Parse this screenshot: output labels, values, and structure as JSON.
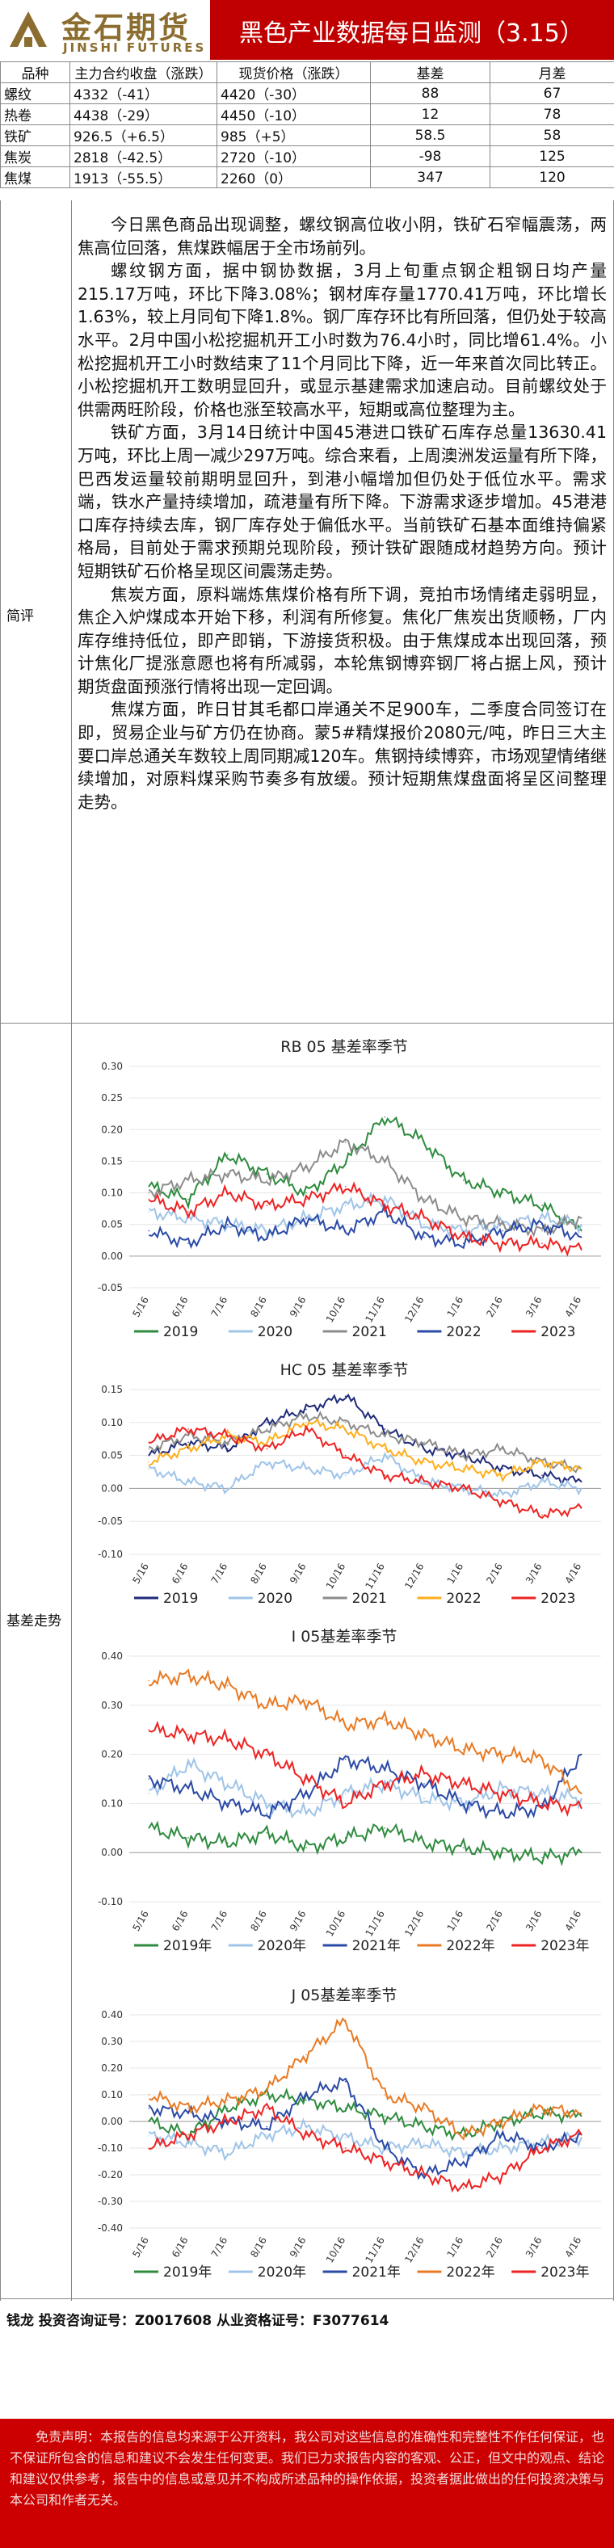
{
  "header": {
    "logo_cn": "金石期货",
    "logo_en": "JINSHI FUTURES",
    "title": "黑色产业数据每日监测（3.15）"
  },
  "price_table": {
    "headers": [
      "品种",
      "主力合约收盘（涨跌）",
      "现货价格（涨跌）",
      "基差",
      "月差"
    ],
    "rows": [
      [
        "螺纹",
        "4332（-41）",
        "4420（-30）",
        "88",
        "67"
      ],
      [
        "热卷",
        "4438（-29）",
        "4450（-10）",
        "12",
        "78"
      ],
      [
        "铁矿",
        "926.5（+6.5）",
        "985（+5）",
        "58.5",
        "58"
      ],
      [
        "焦炭",
        "2818（-42.5）",
        "2720（-10）",
        "-98",
        "125"
      ],
      [
        "焦煤",
        "1913（-55.5）",
        "2260（0）",
        "347",
        "120"
      ]
    ]
  },
  "summary": {
    "label": "简评",
    "paragraphs": [
      "今日黑色商品出现调整，螺纹钢高位收小阴，铁矿石窄幅震荡，两焦高位回落，焦煤跌幅居于全市场前列。",
      "螺纹钢方面，据中钢协数据，3月上旬重点钢企粗钢日均产量215.17万吨，环比下降3.08%；钢材库存量1770.41万吨，环比增长1.63%，较上月同旬下降1.8%。钢厂库存环比有所回落，但仍处于较高水平。2月中国小松挖掘机开工小时数为76.4小时，同比增61.4%。小松挖掘机开工小时数结束了11个月同比下降，近一年来首次同比转正。小松挖掘机开工数明显回升，或显示基建需求加速启动。目前螺纹处于供需两旺阶段，价格也涨至较高水平，短期或高位整理为主。",
      "铁矿方面，3月14日统计中国45港进口铁矿石库存总量13630.41万吨，环比上周一减少297万吨。综合来看，上周澳洲发运量有所下降，巴西发运量较前期明显回升，到港小幅增加但仍处于低位水平。需求端，铁水产量持续增加，疏港量有所下降。下游需求逐步增加。45港港口库存持续去库，钢厂库存处于偏低水平。当前铁矿石基本面维持偏紧格局，目前处于需求预期兑现阶段，预计铁矿跟随成材趋势方向。预计短期铁矿石价格呈现区间震荡走势。",
      "焦炭方面，原料端炼焦煤价格有所下调，竞拍市场情绪走弱明显，焦企入炉煤成本开始下移，利润有所修复。焦化厂焦炭出货顺畅，厂内库存维持低位，即产即销，下游接货积极。由于焦煤成本出现回落，预计焦化厂提涨意愿也将有所减弱，本轮焦钢博弈钢厂将占据上风，预计期货盘面预涨行情将出现一定回调。",
      "焦煤方面，昨日甘其毛都口岸通关不足900车，二季度合同签订在即，贸易企业与矿方仍在协商。蒙5#精煤报价2080元/吨，昨日三大主要口岸总通关车数较上周同期减120车。焦钢持续博弈，市场观望情绪继续增加，对原料煤采购节奏多有放缓。预计短期焦煤盘面将呈区间整理走势。"
    ]
  },
  "basis": {
    "label": "基差走势",
    "colors": {
      "2019": "#2e8b3e",
      "2020": "#9fc4e8",
      "2021": "#8c8c8c",
      "2022": "#ffae1a",
      "2023": "#ee2222",
      "2021b": "#2a4aa6",
      "2022o": "#e87a23"
    }
  },
  "chart_data": [
    {
      "type": "line",
      "title": "RB 05 基差率季节",
      "x": [
        "5/16",
        "6/16",
        "7/16",
        "8/16",
        "9/16",
        "10/16",
        "11/16",
        "12/16",
        "1/16",
        "2/16",
        "3/16",
        "4/16"
      ],
      "ylim": [
        -0.05,
        0.3
      ],
      "yticks": [
        "-0.05",
        "0.00",
        "0.05",
        "0.10",
        "0.15",
        "0.20",
        "0.25",
        "0.30"
      ],
      "legend": [
        "2019",
        "2020",
        "2021",
        "2022",
        "2023"
      ],
      "legend_position": "bottom",
      "series": [
        {
          "name": "2019",
          "values": [
            0.11,
            0.09,
            0.16,
            0.13,
            0.1,
            0.15,
            0.22,
            0.18,
            0.12,
            0.1,
            0.08,
            0.04
          ]
        },
        {
          "name": "2020",
          "values": [
            0.07,
            0.06,
            0.05,
            0.04,
            0.06,
            0.08,
            0.09,
            0.05,
            0.04,
            0.05,
            0.06,
            0.05
          ]
        },
        {
          "name": "2021",
          "values": [
            0.1,
            0.12,
            0.13,
            0.12,
            0.14,
            0.18,
            0.15,
            0.09,
            0.06,
            0.05,
            0.04,
            0.06
          ]
        },
        {
          "name": "2022",
          "values": [
            0.04,
            0.02,
            0.05,
            0.03,
            0.06,
            0.04,
            0.07,
            0.03,
            0.02,
            0.04,
            0.05,
            0.03
          ]
        },
        {
          "name": "2023",
          "values": [
            0.09,
            0.07,
            0.1,
            0.08,
            0.09,
            0.11,
            0.08,
            0.06,
            0.03,
            0.02,
            0.02,
            0.01
          ]
        }
      ]
    },
    {
      "type": "line",
      "title": "HC 05 基差率季节",
      "x": [
        "5/16",
        "6/16",
        "7/16",
        "8/16",
        "9/16",
        "10/16",
        "11/16",
        "12/16",
        "1/16",
        "2/16",
        "3/16",
        "4/16"
      ],
      "ylim": [
        -0.1,
        0.15
      ],
      "yticks": [
        "-0.10",
        "-0.05",
        "0.00",
        "0.05",
        "0.10",
        "0.15"
      ],
      "legend": [
        "2019",
        "2020",
        "2021",
        "2022",
        "2023"
      ],
      "legend_position": "bottom",
      "series": [
        {
          "name": "2019",
          "values": [
            0.05,
            0.07,
            0.06,
            0.1,
            0.12,
            0.14,
            0.09,
            0.06,
            0.05,
            0.03,
            0.02,
            0.01
          ]
        },
        {
          "name": "2020",
          "values": [
            0.03,
            0.01,
            0.0,
            0.04,
            0.03,
            0.02,
            0.05,
            0.01,
            0.0,
            -0.01,
            0.01,
            0.0
          ]
        },
        {
          "name": "2021",
          "values": [
            0.06,
            0.08,
            0.07,
            0.09,
            0.11,
            0.1,
            0.08,
            0.07,
            0.05,
            0.06,
            0.04,
            0.03
          ]
        },
        {
          "name": "2022",
          "values": [
            0.04,
            0.06,
            0.08,
            0.07,
            0.1,
            0.09,
            0.06,
            0.04,
            0.03,
            0.02,
            0.04,
            0.03
          ]
        },
        {
          "name": "2023",
          "values": [
            0.07,
            0.09,
            0.08,
            0.06,
            0.09,
            0.05,
            0.02,
            0.01,
            0.0,
            -0.02,
            -0.04,
            -0.03
          ]
        }
      ]
    },
    {
      "type": "line",
      "title": "I 05基差率季节",
      "x": [
        "5/16",
        "6/16",
        "7/16",
        "8/16",
        "9/16",
        "10/16",
        "11/16",
        "12/16",
        "1/16",
        "2/16",
        "3/16",
        "4/16"
      ],
      "ylim": [
        -0.1,
        0.4
      ],
      "yticks": [
        "-0.10",
        "0.00",
        "0.10",
        "0.20",
        "0.30",
        "0.40"
      ],
      "legend": [
        "2019年",
        "2020年",
        "2021年",
        "2022年",
        "2023年"
      ],
      "legend_position": "bottom",
      "series": [
        {
          "name": "2019年",
          "values": [
            0.05,
            0.03,
            0.02,
            0.04,
            0.01,
            0.03,
            0.05,
            0.02,
            0.01,
            0.0,
            -0.01,
            0.0
          ]
        },
        {
          "name": "2020年",
          "values": [
            0.12,
            0.18,
            0.14,
            0.1,
            0.08,
            0.12,
            0.14,
            0.11,
            0.1,
            0.13,
            0.12,
            0.11
          ]
        },
        {
          "name": "2021年",
          "values": [
            0.15,
            0.13,
            0.1,
            0.08,
            0.12,
            0.19,
            0.17,
            0.14,
            0.1,
            0.08,
            0.09,
            0.2
          ]
        },
        {
          "name": "2022年",
          "values": [
            0.35,
            0.36,
            0.34,
            0.3,
            0.31,
            0.26,
            0.27,
            0.24,
            0.21,
            0.2,
            0.19,
            0.12
          ]
        },
        {
          "name": "2023年",
          "values": [
            0.25,
            0.24,
            0.23,
            0.2,
            0.15,
            0.1,
            0.14,
            0.16,
            0.14,
            0.12,
            0.1,
            0.09
          ]
        }
      ]
    },
    {
      "type": "line",
      "title": "J 05基差率季节",
      "x": [
        "5/16",
        "6/16",
        "7/16",
        "8/16",
        "9/16",
        "10/16",
        "11/16",
        "12/16",
        "1/16",
        "2/16",
        "3/16",
        "4/16"
      ],
      "ylim": [
        -0.4,
        0.4
      ],
      "yticks": [
        "-0.40",
        "-0.30",
        "-0.20",
        "-0.10",
        "0.00",
        "0.10",
        "0.20",
        "0.30",
        "0.40"
      ],
      "legend": [
        "2019年",
        "2020年",
        "2021年",
        "2022年",
        "2023年"
      ],
      "legend_position": "bottom",
      "series": [
        {
          "name": "2019年",
          "values": [
            0.0,
            -0.05,
            0.05,
            0.1,
            0.08,
            0.05,
            0.02,
            -0.02,
            -0.05,
            0.0,
            0.03,
            0.02
          ]
        },
        {
          "name": "2020年",
          "values": [
            -0.05,
            -0.08,
            -0.12,
            -0.05,
            -0.02,
            -0.06,
            -0.1,
            -0.08,
            -0.12,
            -0.1,
            -0.08,
            -0.06
          ]
        },
        {
          "name": "2021年",
          "values": [
            0.05,
            0.03,
            0.0,
            -0.02,
            0.1,
            0.15,
            -0.1,
            -0.2,
            -0.15,
            -0.05,
            -0.1,
            -0.05
          ]
        },
        {
          "name": "2022年",
          "values": [
            0.1,
            0.05,
            0.08,
            0.12,
            0.25,
            0.38,
            0.1,
            0.05,
            -0.05,
            0.0,
            0.05,
            0.03
          ]
        },
        {
          "name": "2023年",
          "values": [
            -0.1,
            -0.05,
            0.0,
            0.05,
            -0.05,
            -0.1,
            -0.15,
            -0.2,
            -0.25,
            -0.2,
            -0.1,
            -0.05
          ]
        }
      ]
    }
  ],
  "contact": "钱龙 投资咨询证号：Z0017608 从业资格证号：F3077614",
  "disclaimer": "免责声明：本报告的信息均来源于公开资料，我公司对这些信息的准确性和完整性不作任何保证，也不保证所包含的信息和建议不会发生任何变更。我们已力求报告内容的客观、公正，但文中的观点、结论和建议仅供参考，报告中的信息或意见并不构成所述品种的操作依据，投资者据此做出的任何投资决策与本公司和作者无关。"
}
